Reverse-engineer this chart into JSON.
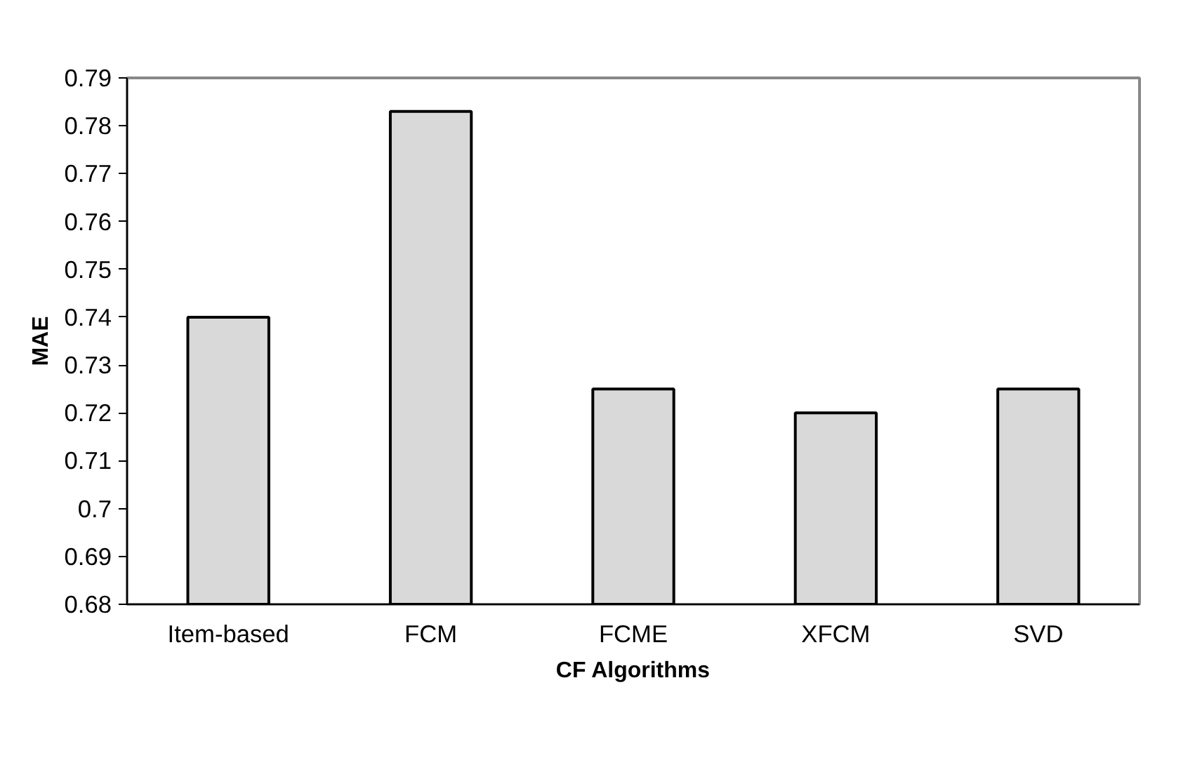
{
  "chart_data": {
    "type": "bar",
    "xlabel": "CF Algorithms",
    "ylabel": "MAE",
    "categories": [
      "Item-based",
      "FCM",
      "FCME",
      "XFCM",
      "SVD"
    ],
    "values": [
      0.74,
      0.783,
      0.725,
      0.72,
      0.725
    ],
    "color": "#d9d9d9",
    "ylim": [
      0.68,
      0.79
    ],
    "yticks": [
      0.68,
      0.69,
      {
        "value": 0.7,
        "label": "0.7"
      },
      0.71,
      0.72,
      0.73,
      0.74,
      0.75,
      0.76,
      0.77,
      0.78,
      0.79
    ],
    "grid": false
  }
}
